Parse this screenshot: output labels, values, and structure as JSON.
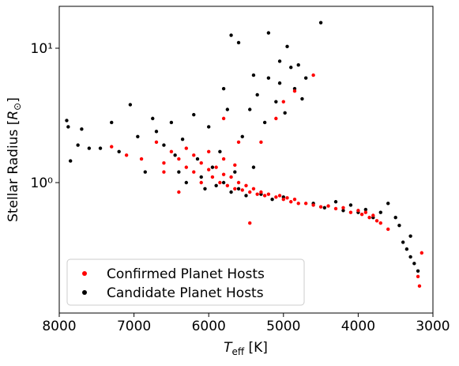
{
  "chart_data": {
    "type": "scatter",
    "x_label": [
      "T",
      "eff",
      " [K]"
    ],
    "y_label": [
      "Stellar Radius [",
      "R",
      "⊙",
      "]"
    ],
    "xlim": [
      8000,
      3000
    ],
    "ylim": [
      0.107,
      20.5
    ],
    "log_y": true,
    "xticks": [
      8000,
      7000,
      6000,
      5000,
      4000,
      3000
    ],
    "yticks": [
      {
        "value": 1,
        "label": "10⁰"
      },
      {
        "value": 10,
        "label": "10¹"
      }
    ],
    "legend": "lower left",
    "series": [
      {
        "name": "Confirmed Planet Hosts",
        "color": "#ff0000",
        "x": [
          7300,
          7100,
          6900,
          6700,
          6600,
          6500,
          6400,
          6300,
          6300,
          6200,
          6200,
          6100,
          6100,
          6000,
          6000,
          5950,
          5900,
          5850,
          5800,
          5800,
          5750,
          5700,
          5650,
          5600,
          5600,
          5550,
          5500,
          5450,
          5400,
          5350,
          5300,
          5250,
          5200,
          5100,
          5050,
          5000,
          4950,
          4900,
          4850,
          4800,
          4700,
          4600,
          4500,
          4400,
          4300,
          4200,
          4100,
          4000,
          3950,
          3900,
          3850,
          3800,
          3750,
          3700,
          3600,
          3200,
          3180,
          3150,
          4600,
          4850,
          5300,
          5100,
          5000,
          5800,
          5450,
          6400,
          6600,
          5650
        ],
        "y": [
          1.85,
          1.6,
          1.5,
          2.0,
          1.4,
          1.7,
          1.5,
          1.3,
          1.8,
          1.2,
          1.6,
          1.4,
          1.0,
          1.25,
          1.7,
          1.1,
          1.3,
          1.0,
          1.15,
          1.5,
          0.95,
          1.1,
          0.9,
          1.0,
          2.0,
          0.88,
          0.95,
          0.85,
          0.9,
          0.82,
          0.85,
          0.8,
          0.82,
          0.78,
          0.8,
          0.75,
          0.77,
          0.72,
          0.75,
          0.7,
          0.7,
          0.68,
          0.66,
          0.67,
          0.64,
          0.65,
          0.6,
          0.62,
          0.58,
          0.6,
          0.55,
          0.57,
          0.52,
          0.5,
          0.45,
          0.2,
          0.17,
          0.3,
          6.3,
          4.8,
          2.0,
          3.0,
          4.0,
          3.0,
          0.5,
          0.85,
          1.2,
          1.35
        ]
      },
      {
        "name": "Candidate Planet Hosts",
        "color": "#000000",
        "x": [
          7900,
          7880,
          7850,
          7750,
          7700,
          7600,
          7450,
          7300,
          7200,
          7050,
          6950,
          6850,
          6750,
          6700,
          6600,
          6500,
          6450,
          6400,
          6350,
          6300,
          6200,
          6150,
          6100,
          6050,
          6000,
          5950,
          5900,
          5850,
          5800,
          5750,
          5700,
          5650,
          5600,
          5550,
          5500,
          5450,
          5400,
          5350,
          5300,
          5250,
          5200,
          5150,
          5100,
          5050,
          5000,
          4980,
          4950,
          4900,
          4850,
          4800,
          4750,
          4700,
          4600,
          4500,
          4450,
          4300,
          4200,
          4100,
          4000,
          3900,
          3800,
          3700,
          3600,
          3500,
          3450,
          3400,
          3350,
          3300,
          3250,
          3200,
          3300,
          5700,
          5600,
          5200,
          5050,
          5400,
          5800
        ],
        "y": [
          2.9,
          2.6,
          1.45,
          1.9,
          2.5,
          1.8,
          1.8,
          2.8,
          1.7,
          3.8,
          2.2,
          1.2,
          3.0,
          2.4,
          1.9,
          2.8,
          1.6,
          1.2,
          2.1,
          1.0,
          3.2,
          1.5,
          1.1,
          0.9,
          2.6,
          1.3,
          0.95,
          1.7,
          1.0,
          3.5,
          0.85,
          1.2,
          0.9,
          2.2,
          0.8,
          3.5,
          1.3,
          4.5,
          0.82,
          2.8,
          6.0,
          0.75,
          4.0,
          5.5,
          0.78,
          3.3,
          10.3,
          7.2,
          5.0,
          7.5,
          4.2,
          6.0,
          0.7,
          15.5,
          0.65,
          0.72,
          0.62,
          0.68,
          0.6,
          0.63,
          0.55,
          0.6,
          0.7,
          0.55,
          0.48,
          0.36,
          0.32,
          0.28,
          0.25,
          0.22,
          0.4,
          12.5,
          11.0,
          13.0,
          8.0,
          6.3,
          5.0
        ]
      }
    ]
  }
}
